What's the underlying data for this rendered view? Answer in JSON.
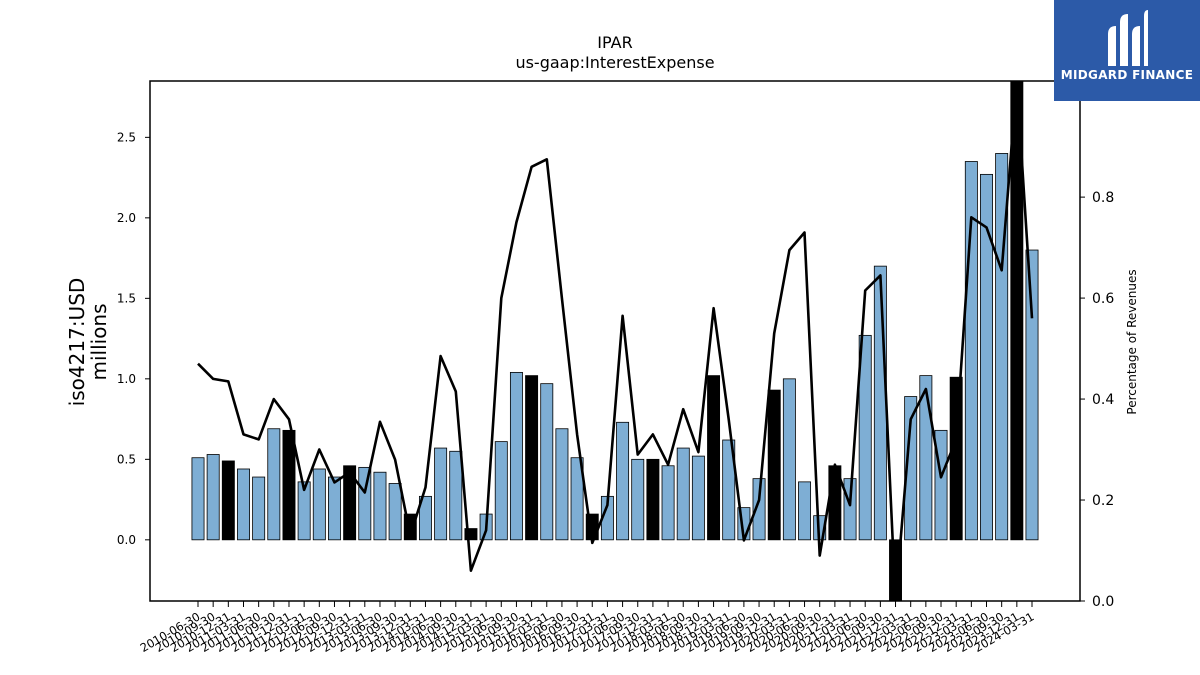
{
  "chart_data": {
    "type": "bar",
    "title": "IPAR",
    "subtitle": "us-gaap:InterestExpense",
    "ylabel": "iso4217:USD\nmillions",
    "y2label": "Percentage of Revenues",
    "ylim": [
      -0.38,
      2.85
    ],
    "y2lim": [
      0.0,
      1.03
    ],
    "yticks": [
      0.0,
      0.5,
      1.0,
      1.5,
      2.0,
      2.5
    ],
    "y2ticks": [
      0.0,
      0.2,
      0.4,
      0.6,
      0.8,
      1.0
    ],
    "categories": [
      "2010-06-30",
      "2010-09-30",
      "2010-12-31",
      "2011-03-31",
      "2011-06-30",
      "2011-09-30",
      "2011-12-31",
      "2012-03-31",
      "2012-06-30",
      "2012-09-30",
      "2012-12-31",
      "2013-03-31",
      "2013-06-30",
      "2013-09-30",
      "2013-12-31",
      "2014-03-31",
      "2014-06-30",
      "2014-09-30",
      "2014-12-31",
      "2015-03-31",
      "2015-06-30",
      "2015-09-30",
      "2015-12-31",
      "2016-03-31",
      "2016-06-30",
      "2016-09-30",
      "2016-12-31",
      "2017-03-31",
      "2017-06-30",
      "2017-09-30",
      "2017-12-31",
      "2018-03-31",
      "2018-06-30",
      "2018-09-30",
      "2018-12-31",
      "2019-03-31",
      "2019-06-30",
      "2019-09-30",
      "2019-12-31",
      "2020-03-31",
      "2020-06-30",
      "2020-09-30",
      "2020-12-31",
      "2021-03-31",
      "2021-06-30",
      "2021-09-30",
      "2021-12-31",
      "2022-03-31",
      "2022-06-30",
      "2022-09-30",
      "2022-12-31",
      "2023-03-31",
      "2023-06-30",
      "2023-09-30",
      "2023-12-31",
      "2024-03-31"
    ],
    "xticklabels": [
      "2010-06-30",
      "2010-09-30",
      "2010-12-31",
      "2011-03-31",
      "2011-06-30",
      "2011-09-30",
      "2011-12-31",
      "2012-03-31",
      "2012-06-30",
      "2012-09-30",
      "2012-12-31",
      "2013-03-31",
      "2013-06-30",
      "2013-09-30",
      "2013-12-31",
      "2014-03-31",
      "2014-06-30",
      "2014-09-30",
      "2014-12-31",
      "2015-03-31",
      "2015-06-30",
      "2015-09-30",
      "2015-12-31",
      "2016-03-31",
      "2016-06-30",
      "2016-09-30",
      "2016-12-31",
      "2017-03-31",
      "2017-06-30",
      "2017-09-30",
      "2017-12-31",
      "2018-03-31",
      "2018-06-30",
      "2018-09-30",
      "2018-12-31",
      "2019-03-31",
      "2019-06-30",
      "2019-09-30",
      "2019-12-31",
      "2020-03-31",
      "2020-06-30",
      "2020-09-30",
      "2020-12-31",
      "2021-03-31",
      "2021-06-30",
      "2021-09-30",
      "2021-12-31",
      "2022-03-31",
      "2022-06-30",
      "2022-09-30",
      "2022-12-31",
      "2023-03-31",
      "2023-06-30",
      "2023-09-30",
      "2023-12-31",
      "2024-03-31"
    ],
    "series": [
      {
        "type": "bar",
        "values": [
          0.51,
          0.53,
          0.49,
          0.44,
          0.39,
          0.69,
          0.68,
          0.36,
          0.44,
          0.39,
          0.46,
          0.45,
          0.42,
          0.35,
          0.16,
          0.27,
          0.57,
          0.55,
          0.07,
          0.16,
          0.61,
          1.04,
          1.02,
          0.97,
          0.69,
          0.51,
          0.16,
          0.27,
          0.73,
          0.5,
          0.5,
          0.46,
          0.57,
          0.52,
          1.02,
          0.62,
          0.2,
          0.38,
          0.93,
          1.0,
          0.36,
          0.15,
          0.46,
          0.38,
          1.27,
          1.7,
          -0.38,
          0.89,
          1.02,
          0.68,
          1.01,
          2.35,
          2.27,
          2.4,
          2.85,
          1.8
        ],
        "highlighted": [
          false,
          false,
          true,
          false,
          false,
          false,
          true,
          false,
          false,
          false,
          true,
          false,
          false,
          false,
          true,
          false,
          false,
          false,
          true,
          false,
          false,
          false,
          true,
          false,
          false,
          false,
          true,
          false,
          false,
          false,
          true,
          false,
          false,
          false,
          true,
          false,
          false,
          false,
          true,
          false,
          false,
          false,
          true,
          false,
          false,
          false,
          true,
          false,
          false,
          false,
          true,
          false,
          false,
          false,
          true,
          false
        ]
      },
      {
        "type": "line",
        "axis": "right",
        "values": [
          0.47,
          0.44,
          0.435,
          0.33,
          0.32,
          0.4,
          0.36,
          0.22,
          0.3,
          0.235,
          0.255,
          0.215,
          0.355,
          0.28,
          0.13,
          0.225,
          0.485,
          0.415,
          0.06,
          0.14,
          0.6,
          0.75,
          0.86,
          0.875,
          0.6,
          0.33,
          0.115,
          0.19,
          0.565,
          0.29,
          0.33,
          0.27,
          0.38,
          0.295,
          0.58,
          0.36,
          0.12,
          0.2,
          0.53,
          0.695,
          0.73,
          0.09,
          0.27,
          0.19,
          0.615,
          0.645,
          0.0,
          0.36,
          0.42,
          0.245,
          0.32,
          0.76,
          0.74,
          0.655,
          1.03,
          0.56
        ]
      }
    ],
    "colors": {
      "bar": "#7eaed4",
      "bar_highlight": "#000000",
      "line": "#000000",
      "edge": "#000000"
    },
    "grid": false,
    "legend": "none"
  },
  "branding": {
    "logo_text": "MIDGARD FINANCE",
    "logo_icon": "midgard-logo-icon",
    "color": "#2c5aa8"
  }
}
